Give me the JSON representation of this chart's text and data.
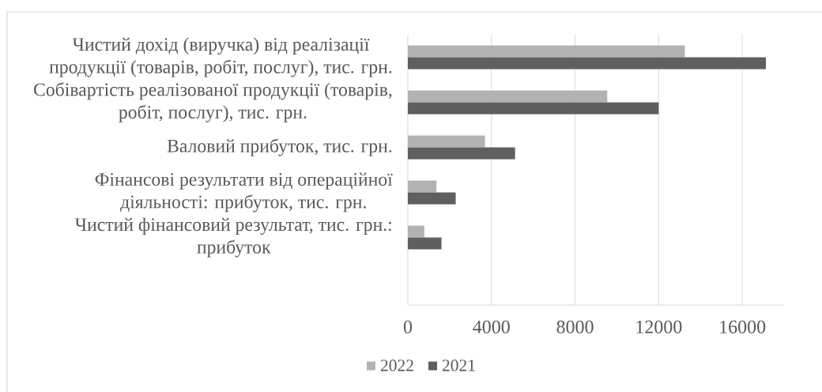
{
  "chart_data": {
    "type": "bar",
    "orientation": "horizontal",
    "categories": [
      "Чистий дохід (виручка) від реалізації продукції (товарів, робіт, послуг), тис. грн.",
      "Собівартість реалізованої продукції (товарів, робіт, послуг), тис. грн.",
      "Валовий прибуток, тис. грн.",
      "Фінансові результати від операційної діяльності: прибуток, тис. грн.",
      "Чистий фінансовий результат, тис. грн.: прибуток",
      null
    ],
    "series": [
      {
        "name": "2022",
        "color": "#b2b2b2",
        "values": [
          13250,
          9540,
          3690,
          1370,
          790,
          null
        ]
      },
      {
        "name": "2021",
        "color": "#5f5f5f",
        "values": [
          17130,
          12000,
          5130,
          2290,
          1610,
          null
        ]
      }
    ],
    "xlim": [
      0,
      18000
    ],
    "xticks": [
      0,
      4000,
      8000,
      12000,
      16000
    ],
    "grid": "x",
    "legend": "bottom"
  }
}
